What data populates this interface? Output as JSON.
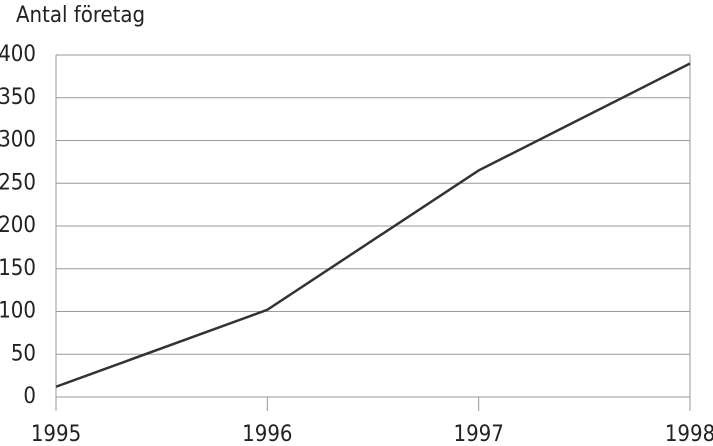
{
  "chart_data": {
    "type": "line",
    "y_label": "Antal företag",
    "x": [
      1995,
      1996,
      1997,
      1998
    ],
    "series": [
      {
        "name": "Antal företag",
        "color": "#333333",
        "values": [
          12,
          102,
          265,
          390
        ]
      }
    ],
    "xlim": [
      1995,
      1998
    ],
    "xticks": [
      1995,
      1996,
      1997,
      1998
    ],
    "ylim": [
      0,
      400
    ],
    "yticks": [
      0,
      50,
      100,
      150,
      200,
      250,
      300,
      350,
      400
    ],
    "grid": true
  }
}
